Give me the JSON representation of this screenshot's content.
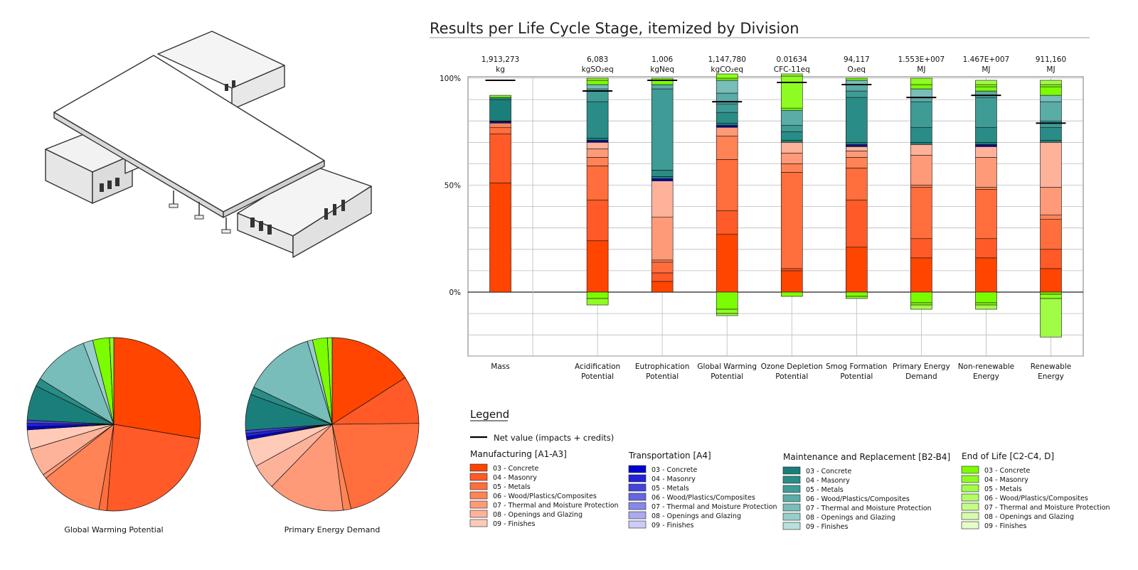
{
  "title": "Results per Life Cycle Stage, itemized by Division",
  "colors": {
    "manufacturing": [
      "#ff4500",
      "#ff5a28",
      "#ff6e3c",
      "#ff8355",
      "#ff9a78",
      "#ffb29a",
      "#ffcbb8"
    ],
    "transportation": [
      "#0000cc",
      "#2222dd",
      "#4444dd",
      "#6666e0",
      "#8888e8",
      "#aaaaee",
      "#ccccf6"
    ],
    "maintenance": [
      "#1a7f7a",
      "#2a8c86",
      "#3f9b96",
      "#5aaca7",
      "#78bdb9",
      "#97ceca",
      "#b9e0dd"
    ],
    "end_of_life": [
      "#7cfc00",
      "#8efc22",
      "#a0fc44",
      "#b2fc66",
      "#c4fc88",
      "#d6fcaa",
      "#e6fdc8"
    ]
  },
  "chart_data": [
    {
      "type": "bar",
      "stacked": true,
      "title": "Results per Life Cycle Stage, itemized by Division",
      "ylabel": "",
      "ylim": [
        -30,
        100
      ],
      "yticks": [
        "100%",
        "50%",
        "0%"
      ],
      "grid": true,
      "categories": [
        {
          "label": [
            "Mass"
          ],
          "total": "1,913,273",
          "unit": "kg"
        },
        {
          "label": [
            "Acidification",
            "Potential"
          ],
          "total": "6,083",
          "unit": "kgSO₂eq"
        },
        {
          "label": [
            "Eutrophication",
            "Potential"
          ],
          "total": "1,006",
          "unit": "kgNeq"
        },
        {
          "label": [
            "Global Warming",
            "Potential"
          ],
          "total": "1,147,780",
          "unit": "kgCO₂eq"
        },
        {
          "label": [
            "Ozone Depletion",
            "Potential"
          ],
          "total": "0.01634",
          "unit": "CFC-11eq"
        },
        {
          "label": [
            "Smog Formation",
            "Potential"
          ],
          "total": "94,117",
          "unit": "O₃eq"
        },
        {
          "label": [
            "Primary Energy",
            "Demand"
          ],
          "total": "1.553E+007",
          "unit": "MJ"
        },
        {
          "label": [
            "Non-renewable",
            "Energy"
          ],
          "total": "1.467E+007",
          "unit": "MJ"
        },
        {
          "label": [
            "Renewable",
            "Energy"
          ],
          "total": "911,160",
          "unit": "MJ"
        }
      ],
      "stacks": [
        {
          "positive": [
            [
              "m",
              0,
              51
            ],
            [
              "m",
              1,
              23
            ],
            [
              "m",
              2,
              3
            ],
            [
              "m",
              3,
              2
            ],
            [
              "t",
              0,
              0.5
            ],
            [
              "t",
              1,
              0.3
            ],
            [
              "t",
              2,
              0.2
            ],
            [
              "r",
              0,
              10
            ],
            [
              "r",
              1,
              1
            ],
            [
              "e",
              0,
              1
            ]
          ],
          "negative": [],
          "net": 99
        },
        {
          "positive": [
            [
              "m",
              0,
              24
            ],
            [
              "m",
              1,
              19
            ],
            [
              "m",
              2,
              16
            ],
            [
              "m",
              3,
              4
            ],
            [
              "m",
              4,
              4
            ],
            [
              "m",
              5,
              3
            ],
            [
              "t",
              0,
              0.6
            ],
            [
              "t",
              1,
              0.4
            ],
            [
              "r",
              0,
              1
            ],
            [
              "r",
              1,
              17
            ],
            [
              "r",
              2,
              5
            ],
            [
              "r",
              3,
              1
            ],
            [
              "r",
              4,
              2
            ],
            [
              "e",
              0,
              2
            ],
            [
              "e",
              1,
              1
            ]
          ],
          "negative": [
            [
              "e",
              0,
              3
            ],
            [
              "e",
              1,
              3
            ]
          ],
          "net": 94
        },
        {
          "positive": [
            [
              "m",
              0,
              5
            ],
            [
              "m",
              1,
              4
            ],
            [
              "m",
              2,
              5
            ],
            [
              "m",
              3,
              1
            ],
            [
              "m",
              4,
              20
            ],
            [
              "m",
              5,
              17
            ],
            [
              "t",
              0,
              1
            ],
            [
              "r",
              0,
              1
            ],
            [
              "r",
              1,
              3
            ],
            [
              "r",
              2,
              38
            ],
            [
              "r",
              3,
              2
            ],
            [
              "e",
              0,
              2
            ],
            [
              "e",
              1,
              1
            ]
          ],
          "negative": [],
          "net": 99
        },
        {
          "positive": [
            [
              "m",
              0,
              27
            ],
            [
              "m",
              1,
              11
            ],
            [
              "m",
              2,
              24
            ],
            [
              "m",
              3,
              11
            ],
            [
              "m",
              4,
              4
            ],
            [
              "t",
              0,
              0.6
            ],
            [
              "t",
              1,
              0.4
            ],
            [
              "r",
              0,
              1
            ],
            [
              "r",
              1,
              5
            ],
            [
              "r",
              2,
              4
            ],
            [
              "r",
              3,
              5
            ],
            [
              "r",
              4,
              6
            ],
            [
              "e",
              0,
              1
            ],
            [
              "e",
              1,
              2
            ]
          ],
          "negative": [
            [
              "e",
              0,
              8
            ],
            [
              "e",
              1,
              2
            ],
            [
              "e",
              2,
              1
            ]
          ],
          "net": 89
        },
        {
          "positive": [
            [
              "m",
              0,
              10
            ],
            [
              "m",
              1,
              1
            ],
            [
              "m",
              2,
              45
            ],
            [
              "m",
              3,
              4
            ],
            [
              "m",
              4,
              5
            ],
            [
              "m",
              5,
              5
            ],
            [
              "r",
              0,
              1
            ],
            [
              "r",
              1,
              4
            ],
            [
              "r",
              2,
              3
            ],
            [
              "r",
              3,
              7
            ],
            [
              "e",
              0,
              1
            ],
            [
              "e",
              1,
              15
            ],
            [
              "e",
              2,
              1
            ]
          ],
          "negative": [
            [
              "e",
              0,
              2
            ]
          ],
          "net": 98
        },
        {
          "positive": [
            [
              "m",
              0,
              21
            ],
            [
              "m",
              1,
              22
            ],
            [
              "m",
              2,
              15
            ],
            [
              "m",
              3,
              5
            ],
            [
              "m",
              4,
              3
            ],
            [
              "m",
              5,
              2
            ],
            [
              "t",
              0,
              0.5
            ],
            [
              "t",
              1,
              0.5
            ],
            [
              "r",
              0,
              1
            ],
            [
              "r",
              1,
              21
            ],
            [
              "r",
              2,
              3
            ],
            [
              "r",
              3,
              3
            ],
            [
              "r",
              4,
              2
            ],
            [
              "e",
              0,
              1
            ]
          ],
          "negative": [
            [
              "e",
              0,
              2
            ],
            [
              "e",
              1,
              1
            ]
          ],
          "net": 97
        },
        {
          "positive": [
            [
              "m",
              0,
              16
            ],
            [
              "m",
              1,
              9
            ],
            [
              "m",
              2,
              24
            ],
            [
              "m",
              3,
              1
            ],
            [
              "m",
              4,
              14
            ],
            [
              "m",
              5,
              5
            ],
            [
              "r",
              0,
              1
            ],
            [
              "r",
              1,
              7
            ],
            [
              "r",
              2,
              12
            ],
            [
              "r",
              3,
              2
            ],
            [
              "r",
              4,
              4
            ],
            [
              "e",
              0,
              2
            ],
            [
              "e",
              1,
              3
            ]
          ],
          "negative": [
            [
              "e",
              0,
              5
            ],
            [
              "e",
              1,
              1
            ],
            [
              "e",
              2,
              2
            ]
          ],
          "net": 91
        },
        {
          "positive": [
            [
              "m",
              0,
              16
            ],
            [
              "m",
              1,
              9
            ],
            [
              "m",
              2,
              23
            ],
            [
              "m",
              3,
              1
            ],
            [
              "m",
              4,
              14
            ],
            [
              "m",
              5,
              5
            ],
            [
              "t",
              0,
              0.6
            ],
            [
              "t",
              1,
              0.4
            ],
            [
              "r",
              0,
              1
            ],
            [
              "r",
              1,
              7
            ],
            [
              "r",
              2,
              14
            ],
            [
              "r",
              3,
              3
            ],
            [
              "e",
              0,
              2
            ],
            [
              "e",
              1,
              1
            ],
            [
              "e",
              2,
              2
            ]
          ],
          "negative": [
            [
              "e",
              0,
              5
            ],
            [
              "e",
              1,
              1
            ],
            [
              "e",
              2,
              2
            ]
          ],
          "net": 92
        },
        {
          "positive": [
            [
              "m",
              0,
              11
            ],
            [
              "m",
              1,
              9
            ],
            [
              "m",
              2,
              14
            ],
            [
              "m",
              3,
              2
            ],
            [
              "m",
              4,
              13
            ],
            [
              "m",
              5,
              21
            ],
            [
              "r",
              0,
              1
            ],
            [
              "r",
              1,
              6
            ],
            [
              "r",
              2,
              3
            ],
            [
              "r",
              3,
              9
            ],
            [
              "r",
              4,
              3
            ],
            [
              "e",
              0,
              4
            ],
            [
              "e",
              1,
              1
            ],
            [
              "e",
              2,
              2
            ]
          ],
          "negative": [
            [
              "e",
              0,
              1
            ],
            [
              "e",
              1,
              2
            ],
            [
              "e",
              2,
              18
            ]
          ],
          "net": 79
        }
      ]
    },
    {
      "type": "pie",
      "title": "Global Warming Potential",
      "labels": [
        "Manufacturing 03 - Concrete",
        "Manufacturing 04 - Masonry",
        "Manufacturing 05 - Metals",
        "Manufacturing 06 - Wood/Plastics/Composites",
        "Manufacturing 07 - Thermal and Moisture Protection",
        "Manufacturing 08 - Openings and Glazing",
        "Manufacturing 09 - Finishes",
        "Transportation 03 - Concrete",
        "Transportation 04 - Masonry",
        "Transportation 05 - Metals",
        "Maintenance 03 - Concrete",
        "Maintenance 04 - Masonry",
        "Maintenance 07 - Thermal and Moisture Protection",
        "Maintenance 08 - Openings and Glazing",
        "End of Life 03 - Concrete",
        "End of Life 04 - Masonry"
      ],
      "values": [
        27.5,
        23.5,
        1.5,
        11.5,
        0.8,
        5.2,
        3.6,
        0.6,
        0.6,
        0.6,
        6.5,
        1.5,
        10.4,
        1.8,
        3.1,
        0.8
      ],
      "series_keys": [
        [
          "m",
          0
        ],
        [
          "m",
          1
        ],
        [
          "m",
          2
        ],
        [
          "m",
          3
        ],
        [
          "m",
          4
        ],
        [
          "m",
          5
        ],
        [
          "m",
          6
        ],
        [
          "t",
          0
        ],
        [
          "t",
          1
        ],
        [
          "t",
          2
        ],
        [
          "r",
          0
        ],
        [
          "r",
          1
        ],
        [
          "r",
          4
        ],
        [
          "r",
          5
        ],
        [
          "e",
          0
        ],
        [
          "e",
          1
        ]
      ]
    },
    {
      "type": "pie",
      "title": "Primary Energy Demand",
      "labels": [
        "Manufacturing 03 - Concrete",
        "Manufacturing 04 - Masonry",
        "Manufacturing 05 - Metals",
        "Manufacturing 06 - Wood/Plastics/Composites",
        "Manufacturing 07 - Thermal and Moisture Protection",
        "Manufacturing 08 - Openings and Glazing",
        "Manufacturing 09 - Finishes",
        "Transportation 03 - Concrete",
        "Transportation 04 - Masonry",
        "Transportation 05 - Metals",
        "Maintenance 03 - Concrete",
        "Maintenance 04 - Masonry",
        "Maintenance 07 - Thermal and Moisture Protection",
        "Maintenance 08 - Openings and Glazing",
        "End of Life 03 - Concrete",
        "End of Life 04 - Masonry"
      ],
      "values": [
        16.2,
        9.0,
        22.0,
        1.5,
        14.5,
        4.8,
        5.2,
        0.6,
        0.6,
        0.6,
        6.8,
        1.5,
        13.5,
        1.0,
        2.8,
        0.9
      ],
      "series_keys": [
        [
          "m",
          0
        ],
        [
          "m",
          1
        ],
        [
          "m",
          2
        ],
        [
          "m",
          3
        ],
        [
          "m",
          4
        ],
        [
          "m",
          5
        ],
        [
          "m",
          6
        ],
        [
          "t",
          0
        ],
        [
          "t",
          1
        ],
        [
          "t",
          2
        ],
        [
          "r",
          0
        ],
        [
          "r",
          1
        ],
        [
          "r",
          4
        ],
        [
          "r",
          5
        ],
        [
          "e",
          0
        ],
        [
          "e",
          1
        ]
      ]
    }
  ],
  "legend": {
    "title": "Legend",
    "net_label": "Net value (impacts + credits)",
    "groups": [
      {
        "key": "m",
        "title": "Manufacturing [A1-A3]",
        "color_set": "manufacturing"
      },
      {
        "key": "t",
        "title": "Transportation [A4]",
        "color_set": "transportation"
      },
      {
        "key": "r",
        "title": "Maintenance and Replacement [B2-B4]",
        "color_set": "maintenance"
      },
      {
        "key": "e",
        "title": "End of Life [C2-C4, D]",
        "color_set": "end_of_life"
      }
    ],
    "divisions": [
      "03 - Concrete",
      "04 - Masonry",
      "05 - Metals",
      "06 - Wood/Plastics/Composites",
      "07 - Thermal and Moisture Protection",
      "08 - Openings and Glazing",
      "09 - Finishes"
    ]
  }
}
